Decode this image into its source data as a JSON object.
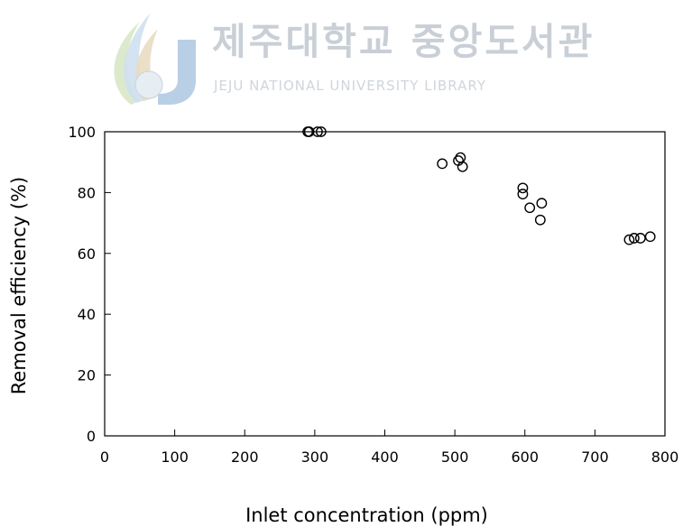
{
  "watermark": {
    "korean": "제주대학교 중앙도서관",
    "english": "JEJU NATIONAL UNIVERSITY LIBRARY",
    "seal_text": "JEJU"
  },
  "chart_data": {
    "type": "scatter",
    "xlabel": "Inlet concentration (ppm)",
    "ylabel": "Removal efficiency (%)",
    "xlim": [
      0,
      800
    ],
    "ylim": [
      0,
      100
    ],
    "x_ticks": [
      "0",
      "100",
      "200",
      "300",
      "400",
      "500",
      "600",
      "700",
      "800"
    ],
    "y_ticks": [
      "0",
      "20",
      "40",
      "60",
      "80",
      "100"
    ],
    "grid": false,
    "marker": "open-circle",
    "points": [
      {
        "x": 290,
        "y": 100
      },
      {
        "x": 292,
        "y": 100
      },
      {
        "x": 304,
        "y": 100
      },
      {
        "x": 309,
        "y": 100
      },
      {
        "x": 482,
        "y": 89.5
      },
      {
        "x": 505,
        "y": 90.5
      },
      {
        "x": 508,
        "y": 91.5
      },
      {
        "x": 511,
        "y": 88.5
      },
      {
        "x": 597,
        "y": 81.5
      },
      {
        "x": 597,
        "y": 79.5
      },
      {
        "x": 607,
        "y": 75
      },
      {
        "x": 624,
        "y": 76.5
      },
      {
        "x": 622,
        "y": 71
      },
      {
        "x": 749,
        "y": 64.5
      },
      {
        "x": 756,
        "y": 65
      },
      {
        "x": 765,
        "y": 65
      },
      {
        "x": 779,
        "y": 65.5
      }
    ]
  }
}
